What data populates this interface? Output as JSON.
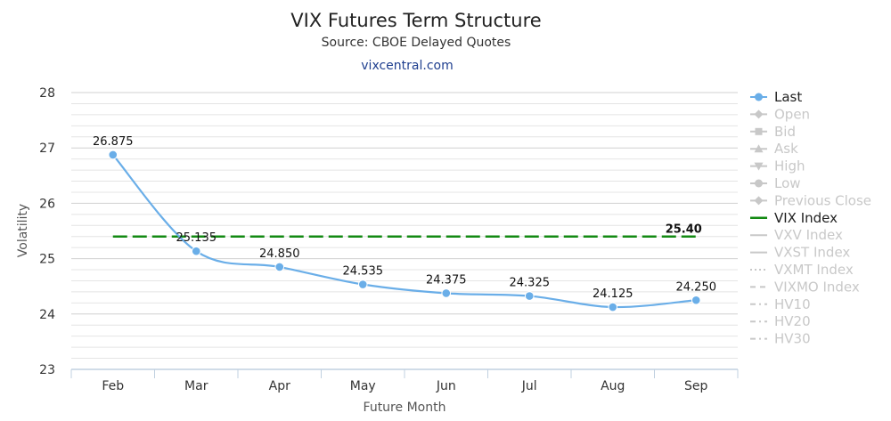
{
  "chart_data": {
    "type": "line",
    "title": "VIX Futures Term Structure",
    "subtitle": "Source: CBOE Delayed Quotes",
    "credit": "vixcentral.com",
    "xlabel": "Future Month",
    "ylabel": "Volatility",
    "categories": [
      "Feb",
      "Mar",
      "Apr",
      "May",
      "Jun",
      "Jul",
      "Aug",
      "Sep"
    ],
    "ylim": [
      23,
      28
    ],
    "yticks": [
      "23",
      "24",
      "25",
      "26",
      "27",
      "28"
    ],
    "grid": true,
    "legend_position": "right",
    "series": [
      {
        "name": "Last",
        "color": "#6aaee8",
        "values": [
          26.875,
          25.135,
          24.85,
          24.535,
          24.375,
          24.325,
          24.125,
          24.25
        ],
        "labels": [
          "26.875",
          "25.135",
          "24.850",
          "24.535",
          "24.375",
          "24.325",
          "24.125",
          "24.250"
        ]
      },
      {
        "name": "VIX Index",
        "color": "#138a13",
        "style": "dashed",
        "value": 25.4,
        "label": "25.40"
      }
    ],
    "legend": [
      {
        "name": "Last",
        "active": true,
        "symbol": "circle",
        "color": "#6aaee8"
      },
      {
        "name": "Open",
        "active": false,
        "symbol": "diamond"
      },
      {
        "name": "Bid",
        "active": false,
        "symbol": "square"
      },
      {
        "name": "Ask",
        "active": false,
        "symbol": "triangle"
      },
      {
        "name": "High",
        "active": false,
        "symbol": "triangle-down"
      },
      {
        "name": "Low",
        "active": false,
        "symbol": "circle"
      },
      {
        "name": "Previous Close",
        "active": false,
        "symbol": "diamond"
      },
      {
        "name": "VIX Index",
        "active": true,
        "symbol": "line",
        "color": "#138a13"
      },
      {
        "name": "VXV Index",
        "active": false,
        "symbol": "line"
      },
      {
        "name": "VXST Index",
        "active": false,
        "symbol": "line"
      },
      {
        "name": "VXMT Index",
        "active": false,
        "symbol": "dotted"
      },
      {
        "name": "VIXMO Index",
        "active": false,
        "symbol": "dash"
      },
      {
        "name": "HV10",
        "active": false,
        "symbol": "dashdot"
      },
      {
        "name": "HV20",
        "active": false,
        "symbol": "dashdot"
      },
      {
        "name": "HV30",
        "active": false,
        "symbol": "dashdot"
      }
    ],
    "colors": {
      "inactive": "#c8c8c8",
      "grid": "#d8d8d8",
      "axis": "#c0d0e0"
    }
  }
}
